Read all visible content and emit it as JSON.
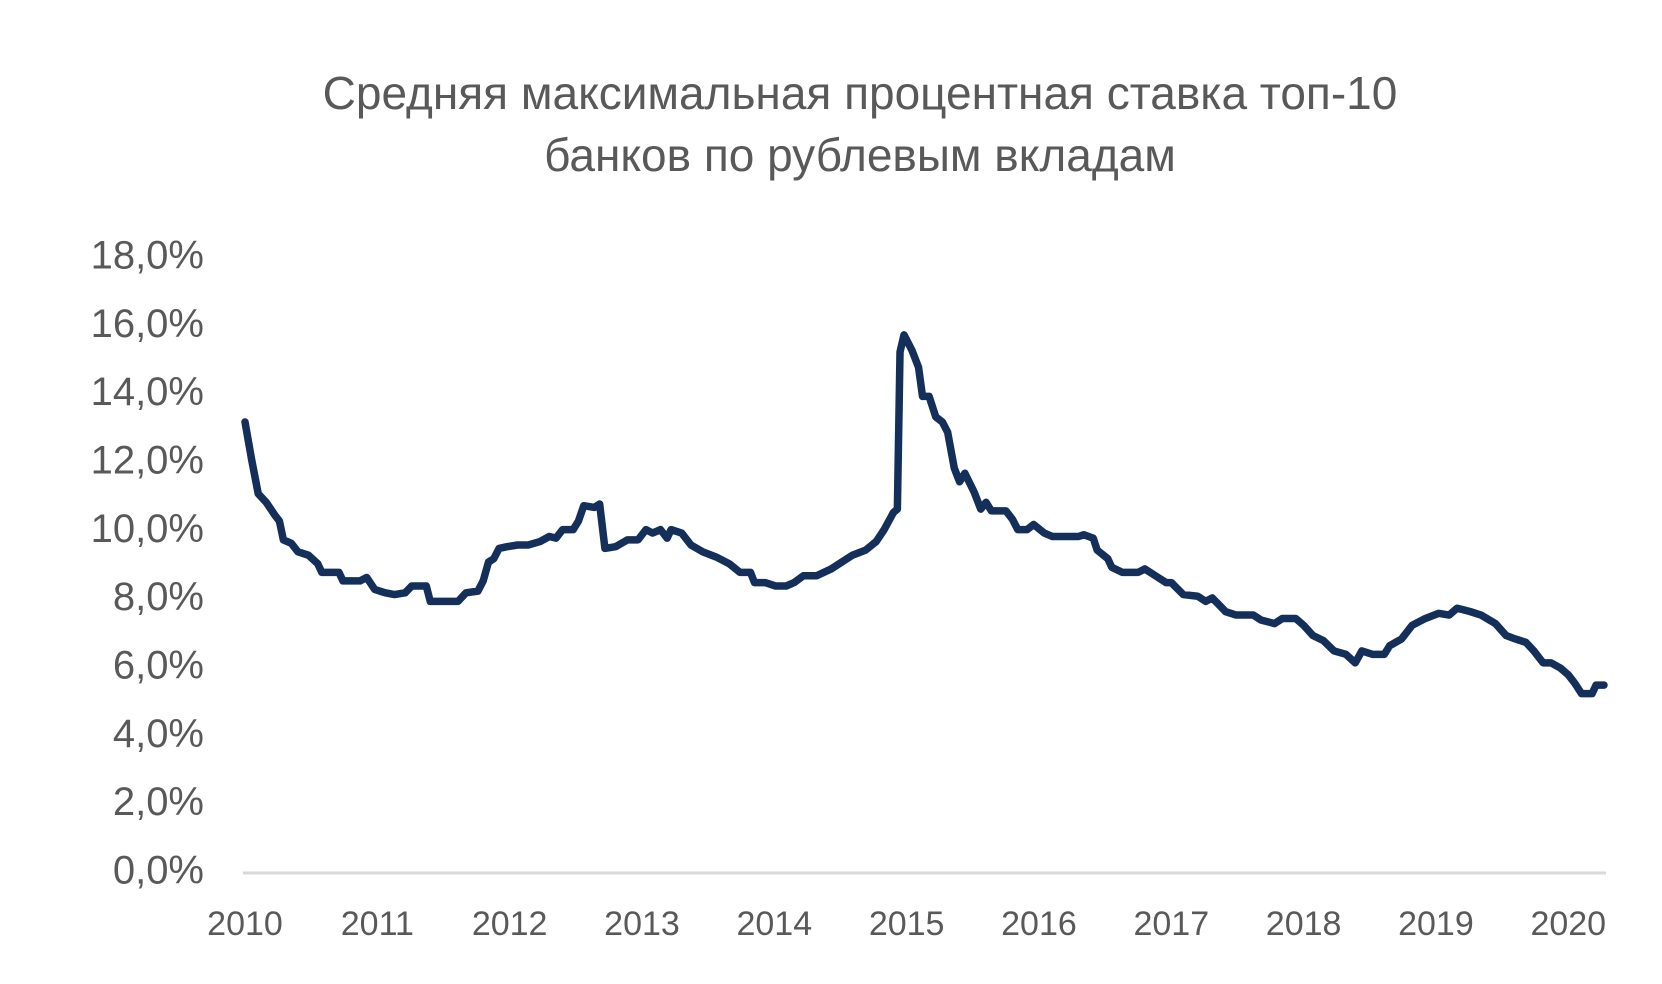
{
  "chart_data": {
    "type": "line",
    "title": "Средняя максимальная процентная ставка топ-10 банков по рублевым вкладам",
    "xlim": [
      2010,
      2020.27
    ],
    "xticks": [
      2010,
      2011,
      2012,
      2013,
      2014,
      2015,
      2016,
      2017,
      2018,
      2019,
      2020
    ],
    "ylim": [
      0,
      18
    ],
    "yticks": [
      {
        "value": 0,
        "label": "0,0%"
      },
      {
        "value": 2,
        "label": "2,0%"
      },
      {
        "value": 4,
        "label": "4,0%"
      },
      {
        "value": 6,
        "label": "6,0%"
      },
      {
        "value": 8,
        "label": "8,0%"
      },
      {
        "value": 10,
        "label": "10,0%"
      },
      {
        "value": 12,
        "label": "12,0%"
      },
      {
        "value": 14,
        "label": "14,0%"
      },
      {
        "value": 16,
        "label": "16,0%"
      },
      {
        "value": 18,
        "label": "18,0%"
      }
    ],
    "grid": false,
    "color": "#14305a",
    "x": [
      2010.0,
      2010.05,
      2010.1,
      2010.16,
      2010.23,
      2010.26,
      2010.29,
      2010.35,
      2010.4,
      2010.48,
      2010.55,
      2010.58,
      2010.71,
      2010.74,
      2010.87,
      2010.92,
      2010.98,
      2011.06,
      2011.13,
      2011.21,
      2011.26,
      2011.37,
      2011.4,
      2011.61,
      2011.67,
      2011.76,
      2011.8,
      2011.84,
      2011.88,
      2011.92,
      2011.98,
      2012.06,
      2012.14,
      2012.23,
      2012.3,
      2012.35,
      2012.4,
      2012.48,
      2012.52,
      2012.56,
      2012.64,
      2012.68,
      2012.72,
      2012.8,
      2012.89,
      2012.97,
      2013.03,
      2013.08,
      2013.14,
      2013.19,
      2013.22,
      2013.3,
      2013.37,
      2013.46,
      2013.56,
      2013.66,
      2013.74,
      2013.82,
      2013.85,
      2013.93,
      2014.01,
      2014.09,
      2014.15,
      2014.22,
      2014.32,
      2014.43,
      2014.51,
      2014.59,
      2014.69,
      2014.77,
      2014.83,
      2014.9,
      2014.93,
      2014.95,
      2014.98,
      2015.04,
      2015.09,
      2015.12,
      2015.17,
      2015.22,
      2015.27,
      2015.31,
      2015.36,
      2015.4,
      2015.44,
      2015.51,
      2015.56,
      2015.6,
      2015.64,
      2015.75,
      2015.8,
      2015.84,
      2015.91,
      2015.96,
      2016.04,
      2016.1,
      2016.23,
      2016.3,
      2016.34,
      2016.41,
      2016.44,
      2016.52,
      2016.55,
      2016.63,
      2016.75,
      2016.8,
      2016.88,
      2016.96,
      2017.0,
      2017.09,
      2017.2,
      2017.26,
      2017.31,
      2017.36,
      2017.41,
      2017.49,
      2017.57,
      2017.62,
      2017.68,
      2017.78,
      2017.84,
      2017.94,
      2018.0,
      2018.07,
      2018.15,
      2018.23,
      2018.32,
      2018.39,
      2018.44,
      2018.52,
      2018.61,
      2018.65,
      2018.74,
      2018.82,
      2018.92,
      2019.02,
      2019.1,
      2019.16,
      2019.21,
      2019.26,
      2019.34,
      2019.45,
      2019.53,
      2019.6,
      2019.68,
      2019.74,
      2019.81,
      2019.87,
      2019.94,
      2020.0,
      2020.05,
      2020.1,
      2020.18,
      2020.21,
      2020.27
    ],
    "values": [
      13.2,
      12.1,
      11.1,
      10.85,
      10.45,
      10.3,
      9.75,
      9.65,
      9.4,
      9.3,
      9.05,
      8.8,
      8.8,
      8.55,
      8.55,
      8.65,
      8.3,
      8.2,
      8.15,
      8.2,
      8.4,
      8.4,
      7.95,
      7.95,
      8.2,
      8.25,
      8.55,
      9.1,
      9.2,
      9.5,
      9.55,
      9.6,
      9.6,
      9.7,
      9.85,
      9.8,
      10.05,
      10.05,
      10.3,
      10.75,
      10.7,
      10.8,
      9.5,
      9.55,
      9.75,
      9.75,
      10.05,
      9.95,
      10.05,
      9.8,
      10.05,
      9.95,
      9.6,
      9.4,
      9.25,
      9.05,
      8.8,
      8.8,
      8.5,
      8.5,
      8.4,
      8.4,
      8.5,
      8.7,
      8.7,
      8.9,
      9.1,
      9.3,
      9.45,
      9.7,
      10.05,
      10.55,
      10.65,
      15.25,
      15.75,
      15.3,
      14.8,
      13.95,
      13.95,
      13.35,
      13.2,
      12.9,
      11.85,
      11.45,
      11.7,
      11.15,
      10.65,
      10.85,
      10.6,
      10.6,
      10.35,
      10.05,
      10.05,
      10.2,
      9.95,
      9.85,
      9.85,
      9.85,
      9.9,
      9.8,
      9.45,
      9.2,
      8.95,
      8.8,
      8.8,
      8.9,
      8.7,
      8.5,
      8.5,
      8.15,
      8.1,
      7.95,
      8.05,
      7.85,
      7.65,
      7.55,
      7.55,
      7.55,
      7.4,
      7.3,
      7.45,
      7.45,
      7.25,
      6.95,
      6.8,
      6.5,
      6.4,
      6.15,
      6.5,
      6.4,
      6.4,
      6.65,
      6.85,
      7.25,
      7.45,
      7.6,
      7.55,
      7.75,
      7.7,
      7.65,
      7.55,
      7.3,
      6.95,
      6.85,
      6.75,
      6.5,
      6.15,
      6.15,
      6.0,
      5.8,
      5.55,
      5.25,
      5.25,
      5.5,
      5.5
    ]
  }
}
